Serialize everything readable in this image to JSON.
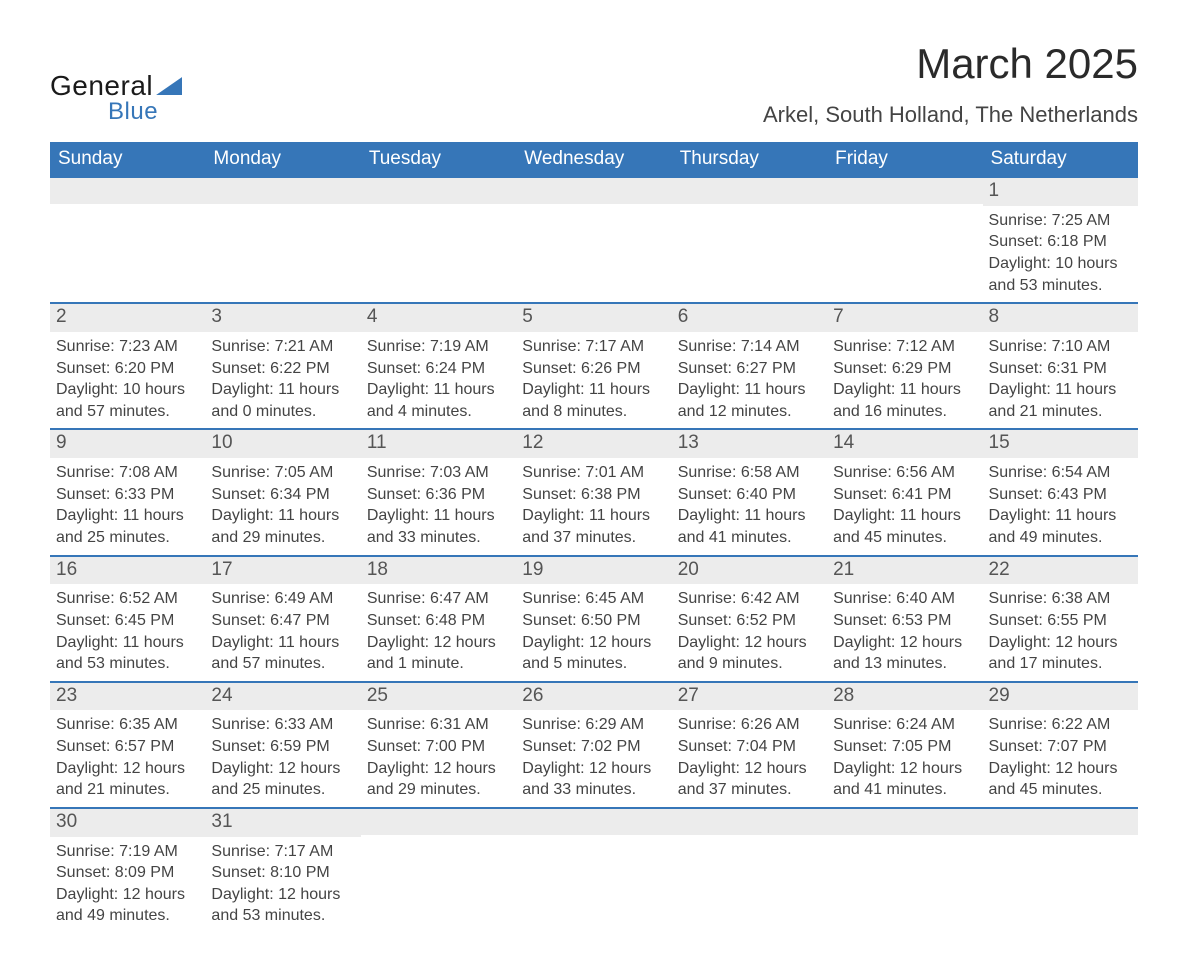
{
  "logo": {
    "text_general": "General",
    "text_blue": "Blue",
    "triangle_color": "#3676b8",
    "text_color_general": "#1a1a1a",
    "text_color_blue": "#3676b8"
  },
  "title": "March 2025",
  "location": "Arkel, South Holland, The Netherlands",
  "colors": {
    "header_bg": "#3676b8",
    "header_text": "#ffffff",
    "daynum_bg": "#ececec",
    "daynum_text": "#555555",
    "body_text": "#444444",
    "week_divider": "#3676b8",
    "page_bg": "#ffffff"
  },
  "fonts": {
    "title_size_pt": 32,
    "location_size_pt": 17,
    "header_size_pt": 14,
    "daynum_size_pt": 14,
    "data_size_pt": 12,
    "family": "Arial"
  },
  "calendar": {
    "type": "calendar-table",
    "columns": [
      "Sunday",
      "Monday",
      "Tuesday",
      "Wednesday",
      "Thursday",
      "Friday",
      "Saturday"
    ],
    "weeks": [
      [
        {
          "day": "",
          "sunrise": "",
          "sunset": "",
          "daylight": ""
        },
        {
          "day": "",
          "sunrise": "",
          "sunset": "",
          "daylight": ""
        },
        {
          "day": "",
          "sunrise": "",
          "sunset": "",
          "daylight": ""
        },
        {
          "day": "",
          "sunrise": "",
          "sunset": "",
          "daylight": ""
        },
        {
          "day": "",
          "sunrise": "",
          "sunset": "",
          "daylight": ""
        },
        {
          "day": "",
          "sunrise": "",
          "sunset": "",
          "daylight": ""
        },
        {
          "day": "1",
          "sunrise": "Sunrise: 7:25 AM",
          "sunset": "Sunset: 6:18 PM",
          "daylight": "Daylight: 10 hours and 53 minutes."
        }
      ],
      [
        {
          "day": "2",
          "sunrise": "Sunrise: 7:23 AM",
          "sunset": "Sunset: 6:20 PM",
          "daylight": "Daylight: 10 hours and 57 minutes."
        },
        {
          "day": "3",
          "sunrise": "Sunrise: 7:21 AM",
          "sunset": "Sunset: 6:22 PM",
          "daylight": "Daylight: 11 hours and 0 minutes."
        },
        {
          "day": "4",
          "sunrise": "Sunrise: 7:19 AM",
          "sunset": "Sunset: 6:24 PM",
          "daylight": "Daylight: 11 hours and 4 minutes."
        },
        {
          "day": "5",
          "sunrise": "Sunrise: 7:17 AM",
          "sunset": "Sunset: 6:26 PM",
          "daylight": "Daylight: 11 hours and 8 minutes."
        },
        {
          "day": "6",
          "sunrise": "Sunrise: 7:14 AM",
          "sunset": "Sunset: 6:27 PM",
          "daylight": "Daylight: 11 hours and 12 minutes."
        },
        {
          "day": "7",
          "sunrise": "Sunrise: 7:12 AM",
          "sunset": "Sunset: 6:29 PM",
          "daylight": "Daylight: 11 hours and 16 minutes."
        },
        {
          "day": "8",
          "sunrise": "Sunrise: 7:10 AM",
          "sunset": "Sunset: 6:31 PM",
          "daylight": "Daylight: 11 hours and 21 minutes."
        }
      ],
      [
        {
          "day": "9",
          "sunrise": "Sunrise: 7:08 AM",
          "sunset": "Sunset: 6:33 PM",
          "daylight": "Daylight: 11 hours and 25 minutes."
        },
        {
          "day": "10",
          "sunrise": "Sunrise: 7:05 AM",
          "sunset": "Sunset: 6:34 PM",
          "daylight": "Daylight: 11 hours and 29 minutes."
        },
        {
          "day": "11",
          "sunrise": "Sunrise: 7:03 AM",
          "sunset": "Sunset: 6:36 PM",
          "daylight": "Daylight: 11 hours and 33 minutes."
        },
        {
          "day": "12",
          "sunrise": "Sunrise: 7:01 AM",
          "sunset": "Sunset: 6:38 PM",
          "daylight": "Daylight: 11 hours and 37 minutes."
        },
        {
          "day": "13",
          "sunrise": "Sunrise: 6:58 AM",
          "sunset": "Sunset: 6:40 PM",
          "daylight": "Daylight: 11 hours and 41 minutes."
        },
        {
          "day": "14",
          "sunrise": "Sunrise: 6:56 AM",
          "sunset": "Sunset: 6:41 PM",
          "daylight": "Daylight: 11 hours and 45 minutes."
        },
        {
          "day": "15",
          "sunrise": "Sunrise: 6:54 AM",
          "sunset": "Sunset: 6:43 PM",
          "daylight": "Daylight: 11 hours and 49 minutes."
        }
      ],
      [
        {
          "day": "16",
          "sunrise": "Sunrise: 6:52 AM",
          "sunset": "Sunset: 6:45 PM",
          "daylight": "Daylight: 11 hours and 53 minutes."
        },
        {
          "day": "17",
          "sunrise": "Sunrise: 6:49 AM",
          "sunset": "Sunset: 6:47 PM",
          "daylight": "Daylight: 11 hours and 57 minutes."
        },
        {
          "day": "18",
          "sunrise": "Sunrise: 6:47 AM",
          "sunset": "Sunset: 6:48 PM",
          "daylight": "Daylight: 12 hours and 1 minute."
        },
        {
          "day": "19",
          "sunrise": "Sunrise: 6:45 AM",
          "sunset": "Sunset: 6:50 PM",
          "daylight": "Daylight: 12 hours and 5 minutes."
        },
        {
          "day": "20",
          "sunrise": "Sunrise: 6:42 AM",
          "sunset": "Sunset: 6:52 PM",
          "daylight": "Daylight: 12 hours and 9 minutes."
        },
        {
          "day": "21",
          "sunrise": "Sunrise: 6:40 AM",
          "sunset": "Sunset: 6:53 PM",
          "daylight": "Daylight: 12 hours and 13 minutes."
        },
        {
          "day": "22",
          "sunrise": "Sunrise: 6:38 AM",
          "sunset": "Sunset: 6:55 PM",
          "daylight": "Daylight: 12 hours and 17 minutes."
        }
      ],
      [
        {
          "day": "23",
          "sunrise": "Sunrise: 6:35 AM",
          "sunset": "Sunset: 6:57 PM",
          "daylight": "Daylight: 12 hours and 21 minutes."
        },
        {
          "day": "24",
          "sunrise": "Sunrise: 6:33 AM",
          "sunset": "Sunset: 6:59 PM",
          "daylight": "Daylight: 12 hours and 25 minutes."
        },
        {
          "day": "25",
          "sunrise": "Sunrise: 6:31 AM",
          "sunset": "Sunset: 7:00 PM",
          "daylight": "Daylight: 12 hours and 29 minutes."
        },
        {
          "day": "26",
          "sunrise": "Sunrise: 6:29 AM",
          "sunset": "Sunset: 7:02 PM",
          "daylight": "Daylight: 12 hours and 33 minutes."
        },
        {
          "day": "27",
          "sunrise": "Sunrise: 6:26 AM",
          "sunset": "Sunset: 7:04 PM",
          "daylight": "Daylight: 12 hours and 37 minutes."
        },
        {
          "day": "28",
          "sunrise": "Sunrise: 6:24 AM",
          "sunset": "Sunset: 7:05 PM",
          "daylight": "Daylight: 12 hours and 41 minutes."
        },
        {
          "day": "29",
          "sunrise": "Sunrise: 6:22 AM",
          "sunset": "Sunset: 7:07 PM",
          "daylight": "Daylight: 12 hours and 45 minutes."
        }
      ],
      [
        {
          "day": "30",
          "sunrise": "Sunrise: 7:19 AM",
          "sunset": "Sunset: 8:09 PM",
          "daylight": "Daylight: 12 hours and 49 minutes."
        },
        {
          "day": "31",
          "sunrise": "Sunrise: 7:17 AM",
          "sunset": "Sunset: 8:10 PM",
          "daylight": "Daylight: 12 hours and 53 minutes."
        },
        {
          "day": "",
          "sunrise": "",
          "sunset": "",
          "daylight": ""
        },
        {
          "day": "",
          "sunrise": "",
          "sunset": "",
          "daylight": ""
        },
        {
          "day": "",
          "sunrise": "",
          "sunset": "",
          "daylight": ""
        },
        {
          "day": "",
          "sunrise": "",
          "sunset": "",
          "daylight": ""
        },
        {
          "day": "",
          "sunrise": "",
          "sunset": "",
          "daylight": ""
        }
      ]
    ]
  }
}
